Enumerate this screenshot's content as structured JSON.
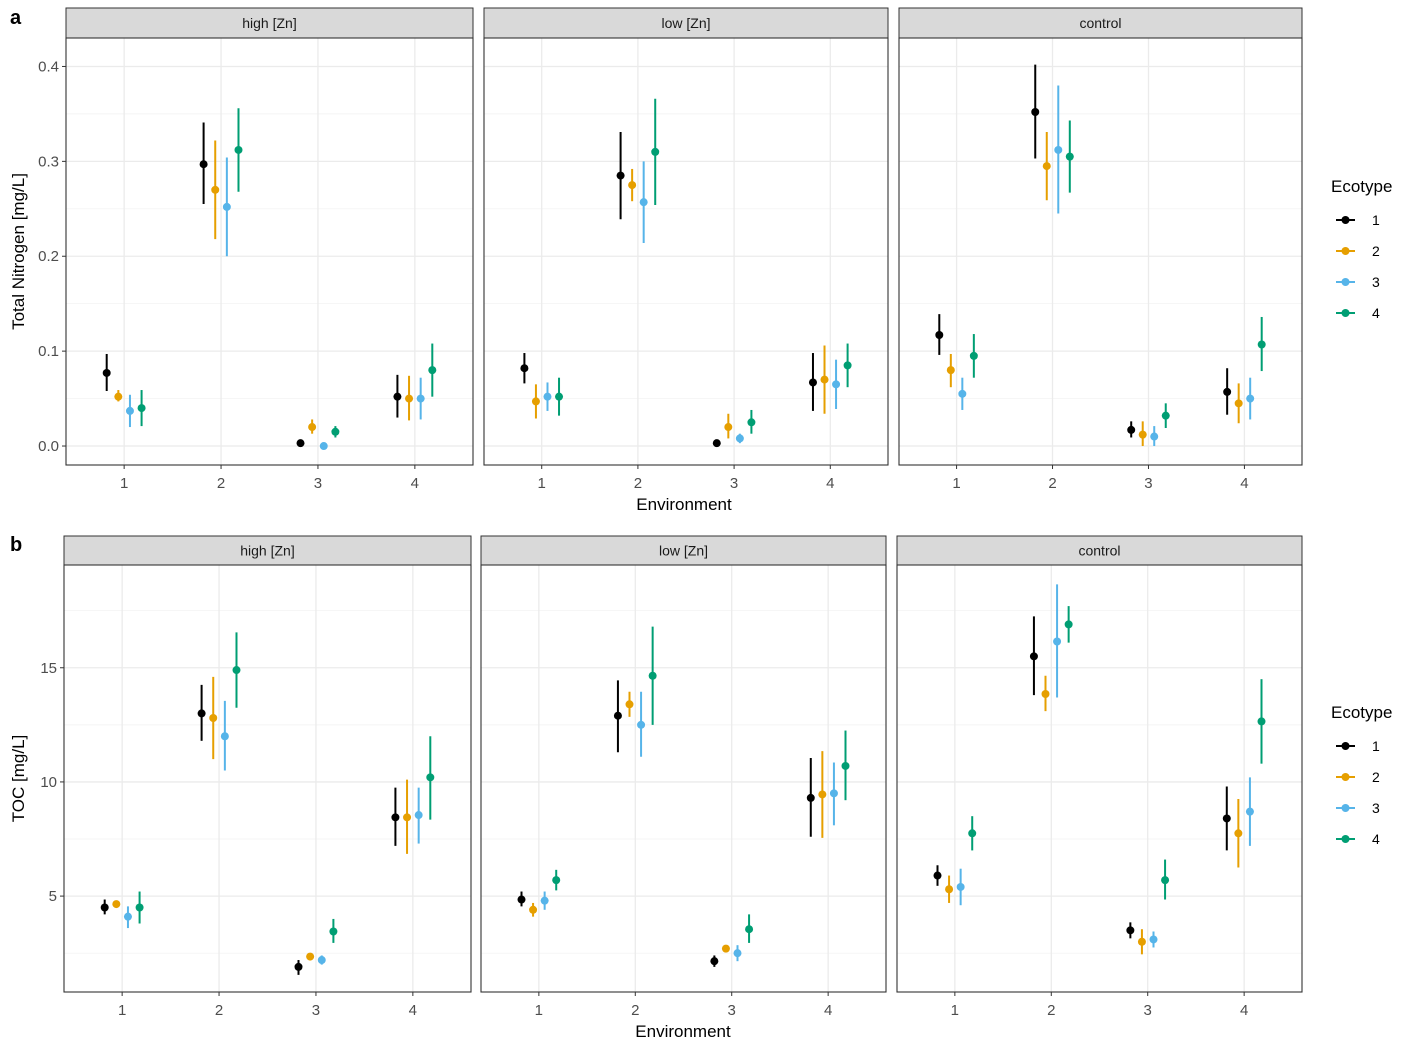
{
  "colors": {
    "1": "#000000",
    "2": "#E69F00",
    "3": "#56B4E9",
    "4": "#009E73"
  },
  "chart_data": [
    {
      "type": "scatter",
      "panel_label": "a",
      "xlabel": "Environment",
      "ylabel": "Total Nitrogen [mg/L]",
      "x_categories": [
        "1",
        "2",
        "3",
        "4"
      ],
      "ylim": [
        -0.02,
        0.43
      ],
      "yticks": [
        0.0,
        0.1,
        0.2,
        0.3,
        0.4
      ],
      "ytick_labels": [
        "0.0",
        "0.1",
        "0.2",
        "0.3",
        "0.4"
      ],
      "legend": {
        "title": "Ecotype",
        "entries": [
          "1",
          "2",
          "3",
          "4"
        ]
      },
      "facets": [
        {
          "label": "high [Zn]",
          "series": [
            {
              "ecotype": "1",
              "mean": [
                0.077,
                0.297,
                0.003,
                0.052
              ],
              "low": [
                0.058,
                0.255,
                0.001,
                0.03
              ],
              "high": [
                0.097,
                0.341,
                0.005,
                0.075
              ]
            },
            {
              "ecotype": "2",
              "mean": [
                0.052,
                0.27,
                0.02,
                0.05
              ],
              "low": [
                0.047,
                0.218,
                0.013,
                0.027
              ],
              "high": [
                0.059,
                0.322,
                0.028,
                0.074
              ]
            },
            {
              "ecotype": "3",
              "mean": [
                0.037,
                0.252,
                0.0,
                0.05
              ],
              "low": [
                0.02,
                0.2,
                -0.001,
                0.028
              ],
              "high": [
                0.054,
                0.304,
                0.001,
                0.072
              ]
            },
            {
              "ecotype": "4",
              "mean": [
                0.04,
                0.312,
                0.015,
                0.08
              ],
              "low": [
                0.021,
                0.268,
                0.009,
                0.052
              ],
              "high": [
                0.059,
                0.356,
                0.021,
                0.108
              ]
            }
          ]
        },
        {
          "label": "low [Zn]",
          "series": [
            {
              "ecotype": "1",
              "mean": [
                0.082,
                0.285,
                0.003,
                0.067
              ],
              "low": [
                0.066,
                0.239,
                0.001,
                0.037
              ],
              "high": [
                0.098,
                0.331,
                0.005,
                0.098
              ]
            },
            {
              "ecotype": "2",
              "mean": [
                0.047,
                0.275,
                0.02,
                0.07
              ],
              "low": [
                0.029,
                0.258,
                0.008,
                0.034
              ],
              "high": [
                0.065,
                0.292,
                0.034,
                0.106
              ]
            },
            {
              "ecotype": "3",
              "mean": [
                0.052,
                0.257,
                0.008,
                0.065
              ],
              "low": [
                0.037,
                0.214,
                0.003,
                0.039
              ],
              "high": [
                0.067,
                0.3,
                0.013,
                0.091
              ]
            },
            {
              "ecotype": "4",
              "mean": [
                0.052,
                0.31,
                0.025,
                0.085
              ],
              "low": [
                0.032,
                0.254,
                0.013,
                0.062
              ],
              "high": [
                0.072,
                0.366,
                0.038,
                0.108
              ]
            }
          ]
        },
        {
          "label": "control",
          "series": [
            {
              "ecotype": "1",
              "mean": [
                0.117,
                0.352,
                0.017,
                0.057
              ],
              "low": [
                0.096,
                0.303,
                0.009,
                0.033
              ],
              "high": [
                0.139,
                0.402,
                0.026,
                0.082
              ]
            },
            {
              "ecotype": "2",
              "mean": [
                0.08,
                0.295,
                0.012,
                0.045
              ],
              "low": [
                0.062,
                0.259,
                0.0,
                0.024
              ],
              "high": [
                0.097,
                0.331,
                0.026,
                0.066
              ]
            },
            {
              "ecotype": "3",
              "mean": [
                0.055,
                0.312,
                0.01,
                0.05
              ],
              "low": [
                0.038,
                0.245,
                0.0,
                0.028
              ],
              "high": [
                0.072,
                0.38,
                0.021,
                0.072
              ]
            },
            {
              "ecotype": "4",
              "mean": [
                0.095,
                0.305,
                0.032,
                0.107
              ],
              "low": [
                0.072,
                0.267,
                0.019,
                0.079
              ],
              "high": [
                0.118,
                0.343,
                0.045,
                0.136
              ]
            }
          ]
        }
      ]
    },
    {
      "type": "scatter",
      "panel_label": "b",
      "xlabel": "Environment",
      "ylabel": "TOC [mg/L]",
      "x_categories": [
        "1",
        "2",
        "3",
        "4"
      ],
      "ylim": [
        0.8,
        19.5
      ],
      "yticks": [
        5,
        10,
        15
      ],
      "ytick_labels": [
        "5",
        "10",
        "15"
      ],
      "legend": {
        "title": "Ecotype",
        "entries": [
          "1",
          "2",
          "3",
          "4"
        ]
      },
      "facets": [
        {
          "label": "high [Zn]",
          "series": [
            {
              "ecotype": "1",
              "mean": [
                4.5,
                13.0,
                1.9,
                8.45
              ],
              "low": [
                4.2,
                11.8,
                1.55,
                7.2
              ],
              "high": [
                4.85,
                14.25,
                2.2,
                9.75
              ]
            },
            {
              "ecotype": "2",
              "mean": [
                4.65,
                12.8,
                2.35,
                8.45
              ],
              "low": [
                4.5,
                11.0,
                2.2,
                6.85
              ],
              "high": [
                4.8,
                14.6,
                2.5,
                10.1
              ]
            },
            {
              "ecotype": "3",
              "mean": [
                4.1,
                12.0,
                2.2,
                8.55
              ],
              "low": [
                3.6,
                10.5,
                2.0,
                7.3
              ],
              "high": [
                4.55,
                13.55,
                2.4,
                9.75
              ]
            },
            {
              "ecotype": "4",
              "mean": [
                4.5,
                14.9,
                3.45,
                10.2
              ],
              "low": [
                3.8,
                13.25,
                2.95,
                8.35
              ],
              "high": [
                5.2,
                16.55,
                4.0,
                12.0
              ]
            }
          ]
        },
        {
          "label": "low [Zn]",
          "series": [
            {
              "ecotype": "1",
              "mean": [
                4.85,
                12.9,
                2.15,
                9.3
              ],
              "low": [
                4.55,
                11.3,
                1.9,
                7.6
              ],
              "high": [
                5.2,
                14.45,
                2.4,
                11.05
              ]
            },
            {
              "ecotype": "2",
              "mean": [
                4.4,
                13.4,
                2.7,
                9.45
              ],
              "low": [
                4.1,
                12.85,
                2.55,
                7.55
              ],
              "high": [
                4.7,
                13.95,
                2.85,
                11.35
              ]
            },
            {
              "ecotype": "3",
              "mean": [
                4.8,
                12.5,
                2.5,
                9.5
              ],
              "low": [
                4.4,
                11.1,
                2.15,
                8.1
              ],
              "high": [
                5.2,
                13.95,
                2.85,
                10.85
              ]
            },
            {
              "ecotype": "4",
              "mean": [
                5.7,
                14.65,
                3.55,
                10.7
              ],
              "low": [
                5.25,
                12.5,
                2.95,
                9.2
              ],
              "high": [
                6.15,
                16.8,
                4.2,
                12.25
              ]
            }
          ]
        },
        {
          "label": "control",
          "series": [
            {
              "ecotype": "1",
              "mean": [
                5.9,
                15.5,
                3.5,
                8.4
              ],
              "low": [
                5.45,
                13.8,
                3.15,
                7.0
              ],
              "high": [
                6.35,
                17.25,
                3.85,
                9.8
              ]
            },
            {
              "ecotype": "2",
              "mean": [
                5.3,
                13.85,
                3.0,
                7.75
              ],
              "low": [
                4.7,
                13.1,
                2.45,
                6.25
              ],
              "high": [
                5.9,
                14.65,
                3.55,
                9.25
              ]
            },
            {
              "ecotype": "3",
              "mean": [
                5.4,
                16.15,
                3.1,
                8.7
              ],
              "low": [
                4.6,
                13.7,
                2.75,
                7.2
              ],
              "high": [
                6.2,
                18.65,
                3.45,
                10.2
              ]
            },
            {
              "ecotype": "4",
              "mean": [
                7.75,
                16.9,
                5.7,
                12.65
              ],
              "low": [
                7.0,
                16.1,
                4.85,
                10.8
              ],
              "high": [
                8.5,
                17.7,
                6.6,
                14.5
              ]
            }
          ]
        }
      ]
    }
  ]
}
